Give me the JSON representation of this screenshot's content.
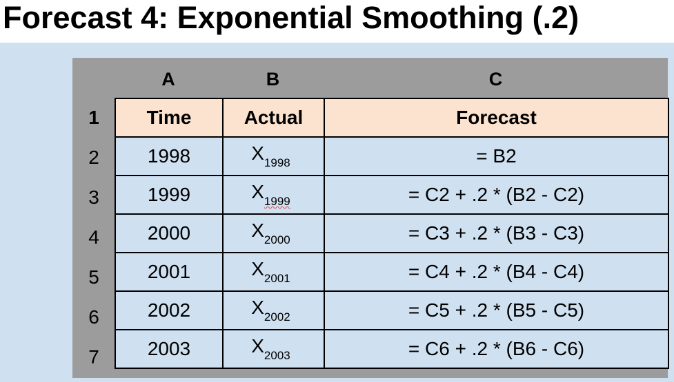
{
  "slide": {
    "title": "Forecast 4: Exponential Smoothing (.2)"
  },
  "sheet": {
    "column_letters": [
      "A",
      "B",
      "C"
    ],
    "row_numbers": [
      "1",
      "2",
      "3",
      "4",
      "5",
      "6",
      "7"
    ],
    "headers": {
      "time": "Time",
      "actual": "Actual",
      "forecast": "Forecast"
    },
    "rows": [
      {
        "time": "1998",
        "actual_symbol": "X",
        "actual_sub": "1998",
        "forecast": "= B2"
      },
      {
        "time": "1999",
        "actual_symbol": "X",
        "actual_sub": "1999",
        "forecast": "= C2 + .2 * (B2 - C2)"
      },
      {
        "time": "2000",
        "actual_symbol": "X",
        "actual_sub": "2000",
        "forecast": "= C3 + .2 * (B3 - C3)"
      },
      {
        "time": "2001",
        "actual_symbol": "X",
        "actual_sub": "2001",
        "forecast": "= C4 + .2 * (B4 - C4)"
      },
      {
        "time": "2002",
        "actual_symbol": "X",
        "actual_sub": "2002",
        "forecast": "= C5 + .2 * (B5 - C5)"
      },
      {
        "time": "2003",
        "actual_symbol": "X",
        "actual_sub": "2003",
        "forecast": "= C6 + .2 * (B6 - C6)"
      }
    ]
  },
  "colors": {
    "panel_background": "#cfe0f1",
    "sheet_header_gray": "#9c9c9c",
    "header_row_fill": "#fce3cf",
    "spellcheck_underline": "#e05050"
  }
}
